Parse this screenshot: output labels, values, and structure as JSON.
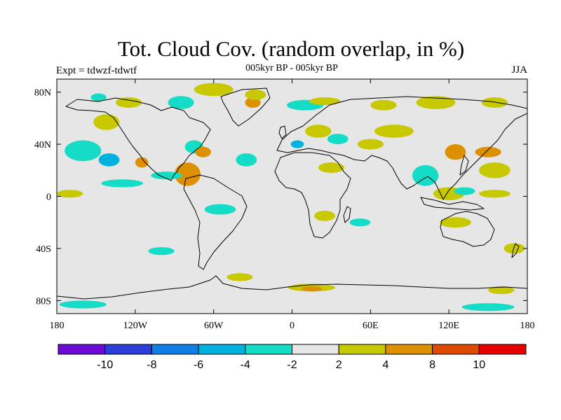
{
  "header": {
    "title": "Tot. Cloud Cov. (random overlap, in %)",
    "subtitle": "005kyr BP - 005kyr BP",
    "expt": "Expt = tdwzf-tdwtf",
    "season": "JJA"
  },
  "axes": {
    "lon_ticks": [
      {
        "lon": -180,
        "label": "180"
      },
      {
        "lon": -120,
        "label": "120W"
      },
      {
        "lon": -60,
        "label": "60W"
      },
      {
        "lon": 0,
        "label": "0"
      },
      {
        "lon": 60,
        "label": "60E"
      },
      {
        "lon": 120,
        "label": "120E"
      },
      {
        "lon": 180,
        "label": "180"
      }
    ],
    "lat_ticks": [
      {
        "lat": 80,
        "label": "80N"
      },
      {
        "lat": 40,
        "label": "40N"
      },
      {
        "lat": 0,
        "label": "0"
      },
      {
        "lat": -40,
        "label": "40S"
      },
      {
        "lat": -80,
        "label": "80S"
      }
    ],
    "lon_range": [
      -180,
      180
    ],
    "lat_range": [
      -90,
      90
    ]
  },
  "colorbar": {
    "colors": [
      "#6c0bd6",
      "#2a3fd8",
      "#0f7ee6",
      "#00b2e0",
      "#14dcc6",
      "#e6e6e6",
      "#c8c800",
      "#dd9100",
      "#dd4a00",
      "#e60000"
    ],
    "labels": [
      "-10",
      "-8",
      "-6",
      "-4",
      "-2",
      "2",
      "4",
      "8",
      "10"
    ]
  },
  "map": {
    "background_color": "#e6e6e6",
    "anomaly_regions": [
      {
        "lon": -125,
        "lat": 72,
        "rx": 10,
        "ry": 4,
        "level": "2 to 4"
      },
      {
        "lon": -148,
        "lat": 76,
        "rx": 6,
        "ry": 3,
        "level": "-4 to -2"
      },
      {
        "lon": -85,
        "lat": 72,
        "rx": 10,
        "ry": 5,
        "level": "-4 to -2"
      },
      {
        "lon": -60,
        "lat": 82,
        "rx": 15,
        "ry": 5,
        "level": "2 to 4"
      },
      {
        "lon": -30,
        "lat": 72,
        "rx": 6,
        "ry": 4,
        "level": "4 to 8"
      },
      {
        "lon": -28,
        "lat": 78,
        "rx": 8,
        "ry": 4,
        "level": "2 to 4"
      },
      {
        "lon": 10,
        "lat": 70,
        "rx": 14,
        "ry": 4,
        "level": "-4 to -2"
      },
      {
        "lon": 25,
        "lat": 73,
        "rx": 12,
        "ry": 3,
        "level": "2 to 4"
      },
      {
        "lon": 70,
        "lat": 70,
        "rx": 10,
        "ry": 4,
        "level": "2 to 4"
      },
      {
        "lon": 110,
        "lat": 72,
        "rx": 15,
        "ry": 5,
        "level": "2 to 4"
      },
      {
        "lon": 155,
        "lat": 72,
        "rx": 10,
        "ry": 4,
        "level": "2 to 4"
      },
      {
        "lon": -142,
        "lat": 57,
        "rx": 10,
        "ry": 6,
        "level": "2 to 4"
      },
      {
        "lon": -160,
        "lat": 35,
        "rx": 14,
        "ry": 8,
        "level": "-4 to -2"
      },
      {
        "lon": -140,
        "lat": 28,
        "rx": 8,
        "ry": 5,
        "level": "-6 to -4"
      },
      {
        "lon": -115,
        "lat": 26,
        "rx": 5,
        "ry": 4,
        "level": "4 to 8"
      },
      {
        "lon": -75,
        "lat": 38,
        "rx": 7,
        "ry": 5,
        "level": "-4 to -2"
      },
      {
        "lon": -68,
        "lat": 34,
        "rx": 6,
        "ry": 4,
        "level": "4 to 8"
      },
      {
        "lon": -80,
        "lat": 17,
        "rx": 10,
        "ry": 9,
        "level": "4 to 8"
      },
      {
        "lon": -96,
        "lat": 16,
        "rx": 12,
        "ry": 3,
        "level": "-4 to -2"
      },
      {
        "lon": -130,
        "lat": 10,
        "rx": 16,
        "ry": 3,
        "level": "-4 to -2"
      },
      {
        "lon": -170,
        "lat": 2,
        "rx": 10,
        "ry": 3,
        "level": "2 to 4"
      },
      {
        "lon": -35,
        "lat": 28,
        "rx": 8,
        "ry": 5,
        "level": "-4 to -2"
      },
      {
        "lon": 20,
        "lat": 50,
        "rx": 10,
        "ry": 5,
        "level": "2 to 4"
      },
      {
        "lon": 4,
        "lat": 40,
        "rx": 5,
        "ry": 3,
        "level": "-6 to -4"
      },
      {
        "lon": 35,
        "lat": 44,
        "rx": 8,
        "ry": 4,
        "level": "-4 to -2"
      },
      {
        "lon": 30,
        "lat": 22,
        "rx": 10,
        "ry": 4,
        "level": "2 to 4"
      },
      {
        "lon": 60,
        "lat": 40,
        "rx": 10,
        "ry": 4,
        "level": "2 to 4"
      },
      {
        "lon": 78,
        "lat": 50,
        "rx": 15,
        "ry": 5,
        "level": "2 to 4"
      },
      {
        "lon": 102,
        "lat": 16,
        "rx": 10,
        "ry": 8,
        "level": "-4 to -2"
      },
      {
        "lon": 125,
        "lat": 34,
        "rx": 8,
        "ry": 6,
        "level": "4 to 8"
      },
      {
        "lon": 150,
        "lat": 34,
        "rx": 10,
        "ry": 4,
        "level": "4 to 8"
      },
      {
        "lon": 155,
        "lat": 20,
        "rx": 12,
        "ry": 6,
        "level": "2 to 4"
      },
      {
        "lon": 120,
        "lat": 2,
        "rx": 12,
        "ry": 5,
        "level": "2 to 4"
      },
      {
        "lon": 155,
        "lat": 2,
        "rx": 12,
        "ry": 3,
        "level": "2 to 4"
      },
      {
        "lon": 132,
        "lat": 4,
        "rx": 8,
        "ry": 3,
        "level": "-4 to -2"
      },
      {
        "lon": -55,
        "lat": -10,
        "rx": 12,
        "ry": 4,
        "level": "-4 to -2"
      },
      {
        "lon": 25,
        "lat": -15,
        "rx": 8,
        "ry": 4,
        "level": "2 to 4"
      },
      {
        "lon": 52,
        "lat": -20,
        "rx": 8,
        "ry": 3,
        "level": "-4 to -2"
      },
      {
        "lon": 125,
        "lat": -20,
        "rx": 12,
        "ry": 4,
        "level": "2 to 4"
      },
      {
        "lon": 170,
        "lat": -40,
        "rx": 8,
        "ry": 4,
        "level": "2 to 4"
      },
      {
        "lon": -100,
        "lat": -42,
        "rx": 10,
        "ry": 3,
        "level": "-4 to -2"
      },
      {
        "lon": -40,
        "lat": -62,
        "rx": 10,
        "ry": 3,
        "level": "2 to 4"
      },
      {
        "lon": 15,
        "lat": -70,
        "rx": 18,
        "ry": 3,
        "level": "2 to 4"
      },
      {
        "lon": 15,
        "lat": -71,
        "rx": 8,
        "ry": 2,
        "level": "4 to 8"
      },
      {
        "lon": 160,
        "lat": -72,
        "rx": 10,
        "ry": 3,
        "level": "2 to 4"
      },
      {
        "lon": -160,
        "lat": -83,
        "rx": 18,
        "ry": 3,
        "level": "-4 to -2"
      },
      {
        "lon": 150,
        "lat": -85,
        "rx": 20,
        "ry": 3,
        "level": "-4 to -2"
      }
    ]
  }
}
